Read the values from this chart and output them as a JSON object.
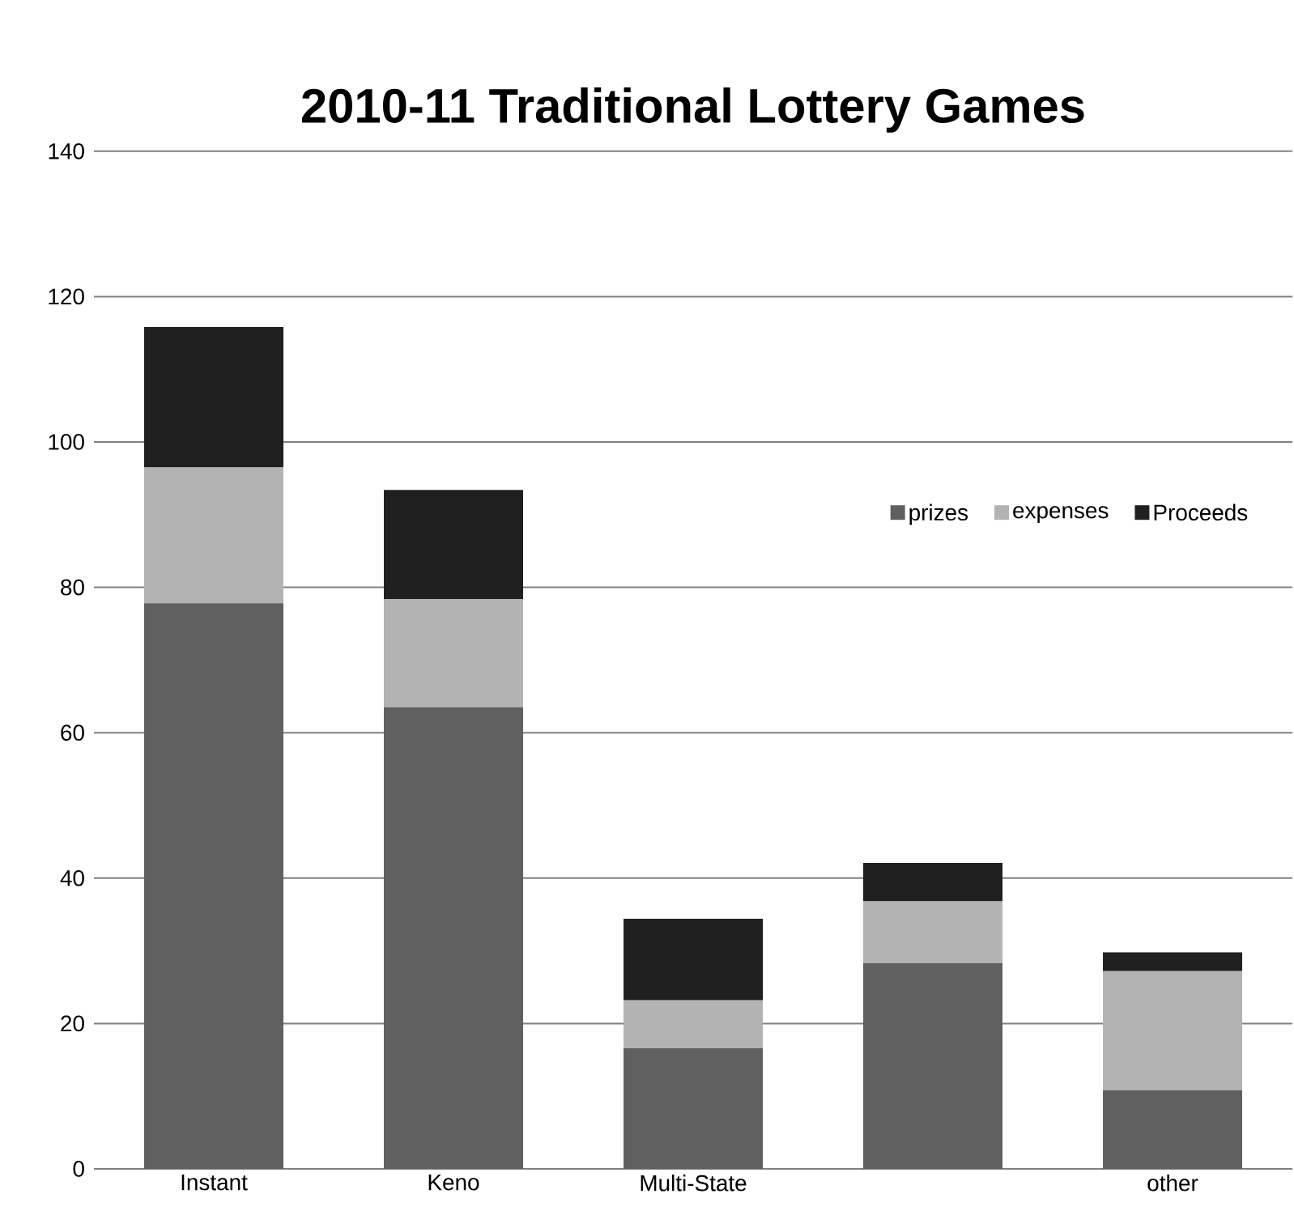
{
  "chart_data": {
    "type": "bar",
    "title": "2010-11 Traditional Lottery Games",
    "stacked": true,
    "categories": [
      "Instant",
      "Keno",
      "Multi-State",
      null,
      "other"
    ],
    "series": [
      {
        "name": "prizes",
        "color": "#606060",
        "values": [
          77.8,
          63.5,
          16.6,
          28.3,
          10.8
        ]
      },
      {
        "name": "expenses",
        "color": "#b3b3b3",
        "values": [
          18.7,
          14.9,
          6.6,
          8.5,
          16.4
        ]
      },
      {
        "name": "Proceeds",
        "color": "#202020",
        "values": [
          19.3,
          15.0,
          11.2,
          5.3,
          2.6
        ]
      }
    ],
    "ylim": [
      0,
      140
    ],
    "yticks": [
      0,
      20,
      40,
      60,
      80,
      100,
      120,
      140
    ],
    "grid": "y",
    "legend": "top right"
  }
}
